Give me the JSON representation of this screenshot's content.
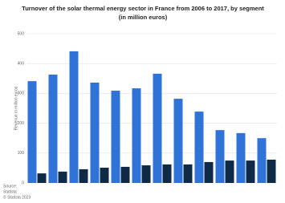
{
  "chart_data": {
    "type": "bar",
    "title": "Turnover of the solar thermal energy sector in France from 2006 to 2017, by segment",
    "subtitle": "(in million euros)",
    "y_label": "Revenue in million euros",
    "categories": [
      null,
      null,
      null,
      null,
      null,
      null,
      null,
      null,
      null,
      null,
      null,
      null
    ],
    "series": [
      {
        "color": "#2f73d8",
        "values": [
          341,
          363,
          441,
          336,
          309,
          317,
          366,
          282,
          239,
          177,
          167,
          150
        ]
      },
      {
        "color": "#0f2a47",
        "values": [
          32,
          38,
          46,
          51,
          54,
          59,
          62,
          62,
          70,
          75,
          75,
          78
        ]
      }
    ],
    "ylim": [
      0,
      500
    ],
    "yticks": [
      0,
      100,
      200,
      300,
      400,
      500
    ],
    "grid": true,
    "source": [
      "Source:",
      "Statista",
      "© Statista 2023"
    ]
  }
}
